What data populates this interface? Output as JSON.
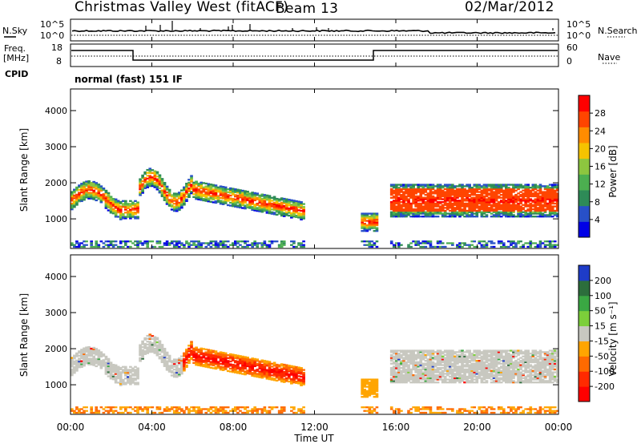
{
  "header": {
    "station": "Christmas Valley West (fitACF)",
    "beam": "Beam 13",
    "date": "02/Mar/2012"
  },
  "top_panels": {
    "nsky_label": "N.Sky",
    "nsearch_label": "N.Search",
    "noise_ticks_left": [
      "10^5",
      "10^0"
    ],
    "noise_ticks_right": [
      "10^5",
      "10^0"
    ],
    "freq_label_line1": "Freq.",
    "freq_label_line2": "[MHz]",
    "freq_ticks": [
      "18",
      "8"
    ],
    "nave_label": "Nave",
    "nave_ticks": [
      "60",
      "0"
    ],
    "cpid_label": "CPID",
    "cpid_value": "normal (fast) 151 IF"
  },
  "chart_data": [
    {
      "type": "heatmap",
      "name": "power",
      "ylabel": "Slant Range [km]",
      "ylim": [
        180,
        4600
      ],
      "yticks": [
        "4000",
        "3000",
        "2000",
        "1000"
      ],
      "colorbar_label": "Power [dB]",
      "colorbar_ticks": [
        "28",
        "24",
        "20",
        "16",
        "12",
        "8",
        "4"
      ],
      "colors": [
        "#0000e6",
        "#2850c8",
        "#2e8b57",
        "#4caf50",
        "#8dc63f",
        "#f5c300",
        "#ff8c00",
        "#ff4500",
        "#ff0000"
      ]
    },
    {
      "type": "heatmap",
      "name": "velocity",
      "ylabel": "Slant Range [km]",
      "ylim": [
        180,
        4600
      ],
      "yticks": [
        "4000",
        "3000",
        "2000",
        "1000"
      ],
      "colorbar_label": "Velocity [m s⁻¹]",
      "colorbar_ticks": [
        "200",
        "100",
        "50",
        "15",
        "-15",
        "-50",
        "-100",
        "-200"
      ],
      "colors": [
        "#1e3cc8",
        "#2c6e3c",
        "#3aa843",
        "#7ccf3a",
        "#c8c8c0",
        "#ffa500",
        "#ff6a00",
        "#ff2a00",
        "#ff0000"
      ],
      "ground_scatter_color": "#c8c8c0"
    }
  ],
  "xaxis": {
    "label": "Time UT",
    "ticks": [
      "00:00",
      "04:00",
      "08:00",
      "12:00",
      "16:00",
      "20:00",
      "00:00"
    ]
  }
}
